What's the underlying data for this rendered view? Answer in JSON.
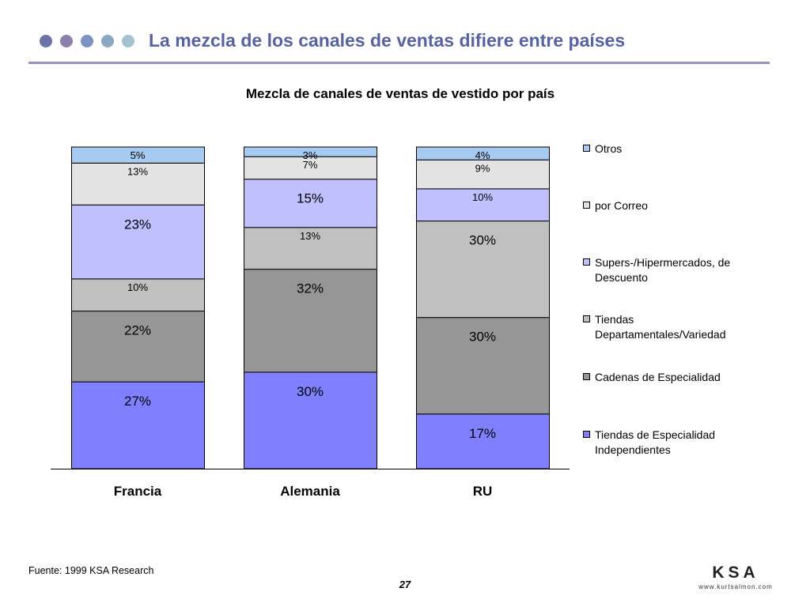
{
  "slide": {
    "title": "La mezcla de los canales de ventas difiere entre países",
    "source": "Fuente:  1999 KSA Research",
    "page_number": "27",
    "logo_text": "KSA",
    "logo_url": "www.kurtsalmon.com",
    "title_dot_colors": [
      "#6b72a8",
      "#8c7fae",
      "#7b93c4",
      "#88a8c4",
      "#a3c2cf"
    ]
  },
  "chart_data": {
    "type": "bar",
    "stacked": true,
    "normalized": true,
    "title": "Mezcla de canales de ventas de vestido por país",
    "categories": [
      "Francia",
      "Alemania",
      "RU"
    ],
    "series": [
      {
        "name": "Tiendas de Especialidad Independientes",
        "color": "#8080ff",
        "values": [
          27,
          30,
          17
        ],
        "labels": [
          "27%",
          "30%",
          "17%"
        ]
      },
      {
        "name": "Cadenas de Especialidad",
        "color": "#969696",
        "values": [
          22,
          32,
          30
        ],
        "labels": [
          "22%",
          "32%",
          "30%"
        ]
      },
      {
        "name": "Tiendas Departamentales/Variedad",
        "color": "#c0c0c0",
        "values": [
          10,
          13,
          30
        ],
        "labels": [
          "10%",
          "13%",
          "30%"
        ]
      },
      {
        "name": "Supers-/Hipermercados, de Descuento",
        "color": "#c0c0ff",
        "values": [
          23,
          15,
          10
        ],
        "labels": [
          "23%",
          "15%",
          "10%"
        ]
      },
      {
        "name": "por Correo",
        "color": "#e3e3e3",
        "values": [
          13,
          7,
          9
        ],
        "labels": [
          "13%",
          "7%",
          "9%"
        ]
      },
      {
        "name": "Otros",
        "color": "#a6caf0",
        "values": [
          5,
          3,
          4
        ],
        "labels": [
          "5%",
          "3%",
          "4%"
        ]
      }
    ],
    "legend_position": "right",
    "legend_order": [
      "Otros",
      "por Correo",
      "Supers-/Hipermercados, de Descuento",
      "Tiendas Departamentales/Variedad",
      "Cadenas de Especialidad",
      "Tiendas de Especialidad Independientes"
    ],
    "grid": false
  }
}
